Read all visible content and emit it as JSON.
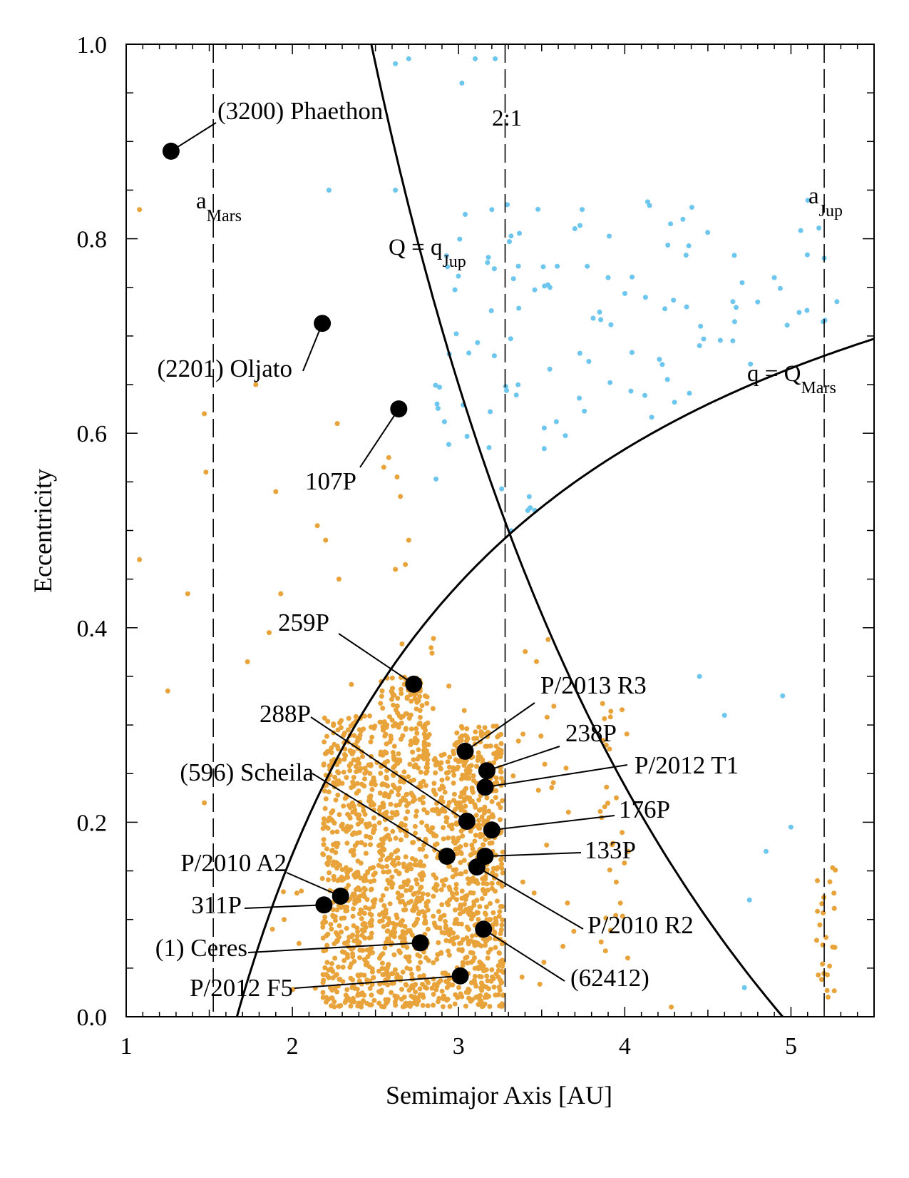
{
  "chart_data": {
    "type": "scatter",
    "xlabel": "Semimajor Axis [AU]",
    "ylabel": "Eccentricity",
    "xlim": [
      1.0,
      5.5
    ],
    "ylim": [
      0.0,
      1.0
    ],
    "x_ticks": [
      "1",
      "2",
      "3",
      "4",
      "5"
    ],
    "y_ticks": [
      "0.0",
      "0.2",
      "0.4",
      "0.6",
      "0.8",
      "1.0"
    ],
    "grid": false,
    "colors": {
      "main_belt": "#e8a33a",
      "comets": "#6cc6ee",
      "objects": "#000000"
    },
    "vertical_lines": [
      {
        "x": 1.524,
        "label": "a",
        "sub": "Mars"
      },
      {
        "x": 3.28,
        "label": "2:1",
        "sub": ""
      },
      {
        "x": 5.2,
        "label": "a",
        "sub": "Jup"
      }
    ],
    "curves": [
      {
        "label": "Q = q",
        "sub": "Jup",
        "relation": "a(1+e) = 4.95"
      },
      {
        "label": "q = Q",
        "sub": "Mars",
        "relation": "a(1-e) = 1.666"
      }
    ],
    "objects": [
      {
        "name": "(3200) Phaethon",
        "a": 1.27,
        "e": 0.89
      },
      {
        "name": "(2201) Oljato",
        "a": 2.18,
        "e": 0.713
      },
      {
        "name": "107P",
        "a": 2.64,
        "e": 0.625
      },
      {
        "name": "259P",
        "a": 2.73,
        "e": 0.342
      },
      {
        "name": "P/2013 R3",
        "a": 3.04,
        "e": 0.273
      },
      {
        "name": "238P",
        "a": 3.17,
        "e": 0.253
      },
      {
        "name": "P/2012 T1",
        "a": 3.16,
        "e": 0.236
      },
      {
        "name": "176P",
        "a": 3.2,
        "e": 0.192
      },
      {
        "name": "288P",
        "a": 3.05,
        "e": 0.201
      },
      {
        "name": "(596) Scheila",
        "a": 2.93,
        "e": 0.165
      },
      {
        "name": "133P",
        "a": 3.16,
        "e": 0.165
      },
      {
        "name": "P/2010 R2",
        "a": 3.11,
        "e": 0.154
      },
      {
        "name": "P/2010 A2",
        "a": 2.29,
        "e": 0.124
      },
      {
        "name": "311P",
        "a": 2.19,
        "e": 0.115
      },
      {
        "name": "(1) Ceres",
        "a": 2.77,
        "e": 0.076
      },
      {
        "name": "P/2012 F5",
        "a": 3.01,
        "e": 0.042
      },
      {
        "name": "(62412)",
        "a": 3.15,
        "e": 0.09
      }
    ]
  }
}
